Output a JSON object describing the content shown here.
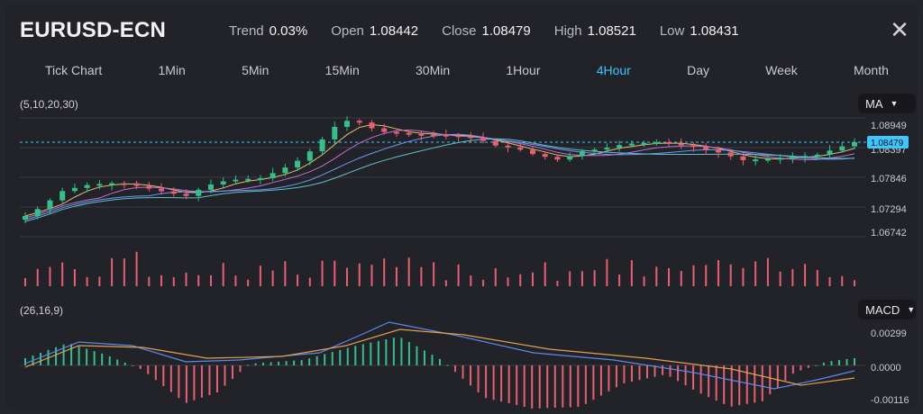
{
  "header": {
    "symbol": "EURUSD-ECN",
    "stats": [
      {
        "label": "Trend",
        "value": "0.03%"
      },
      {
        "label": "Open",
        "value": "1.08442"
      },
      {
        "label": "Close",
        "value": "1.08479"
      },
      {
        "label": "High",
        "value": "1.08521"
      },
      {
        "label": "Low",
        "value": "1.08431"
      }
    ],
    "close_icon": "close-icon"
  },
  "tabs": [
    "Tick Chart",
    "1Min",
    "5Min",
    "15Min",
    "30Min",
    "1Hour",
    "4Hour",
    "Day",
    "Week",
    "Month"
  ],
  "active_tab": "4Hour",
  "colors": {
    "accent": "#3ec6ff",
    "up": "#33c08a",
    "down": "#e8606f",
    "macd": "#5a8ae8",
    "signal": "#e0a050"
  },
  "price_panel": {
    "indicator_params": "(5,10,20,30)",
    "indicator_select": "MA",
    "axis_ticks": [
      "1.08949",
      "1.08397",
      "1.07846",
      "1.07294",
      "1.06742"
    ],
    "current_price": "1.08479"
  },
  "macd_panel": {
    "indicator_params": "(26,16,9)",
    "indicator_select": "MACD",
    "axis_ticks": [
      "0.00299",
      "0.0000",
      "-0.00116"
    ]
  }
}
